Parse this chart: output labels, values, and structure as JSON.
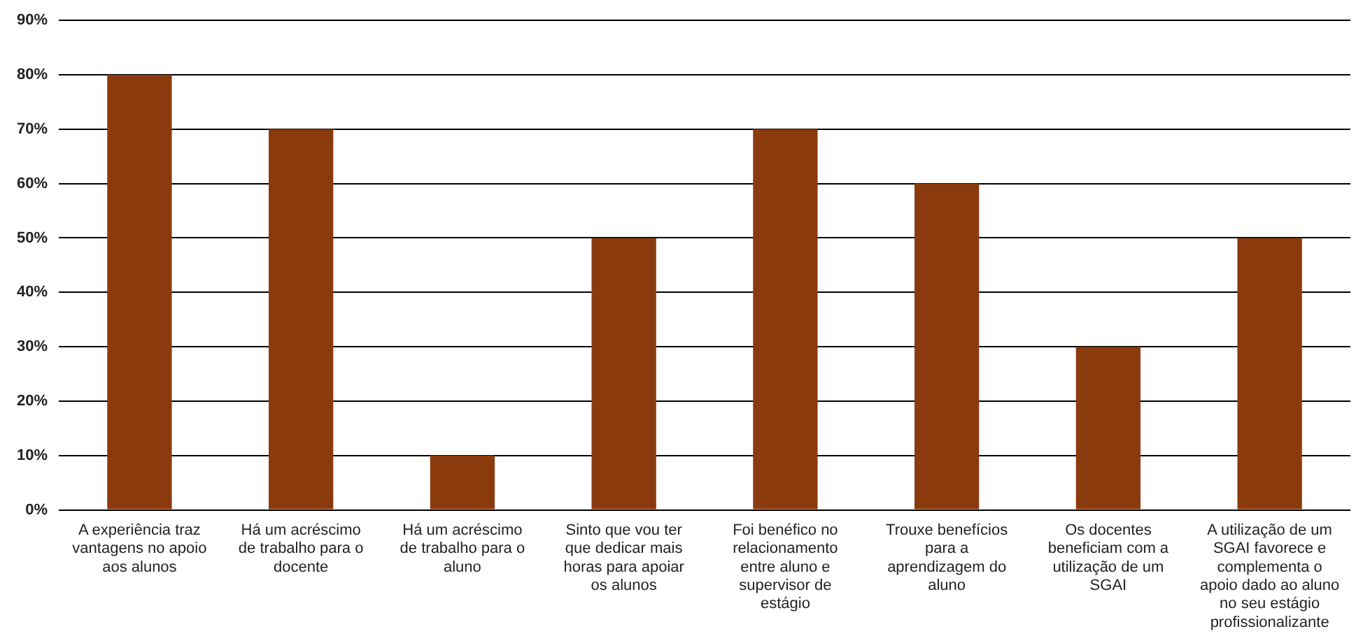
{
  "chart_data": {
    "type": "bar",
    "categories": [
      "A experiência traz vantagens no apoio aos alunos",
      "Há um acréscimo de trabalho para o docente",
      "Há um acréscimo de trabalho para o aluno",
      "Sinto que vou ter que dedicar mais horas para apoiar os alunos",
      "Foi benéfico no relacionamento entre aluno e supervisor de estágio",
      "Trouxe benefícios para a aprendizagem do aluno",
      "Os docentes beneficiam com a utilização de um SGAI",
      "A utilização de um SGAI favorece e complementa o apoio dado ao aluno no seu estágio profissionalizante"
    ],
    "values": [
      80,
      70,
      10,
      50,
      70,
      60,
      30,
      50
    ],
    "color": "#8b3a0e",
    "ylim": [
      0,
      90
    ],
    "yticks": [
      {
        "value": 0,
        "label": "0%"
      },
      {
        "value": 10,
        "label": "10%"
      },
      {
        "value": 20,
        "label": "20%"
      },
      {
        "value": 30,
        "label": "30%"
      },
      {
        "value": 40,
        "label": "40%"
      },
      {
        "value": 50,
        "label": "50%"
      },
      {
        "value": 60,
        "label": "60%"
      },
      {
        "value": 70,
        "label": "70%"
      },
      {
        "value": 80,
        "label": "80%"
      },
      {
        "value": 90,
        "label": "90%"
      }
    ],
    "grid": "y",
    "legend": false
  }
}
